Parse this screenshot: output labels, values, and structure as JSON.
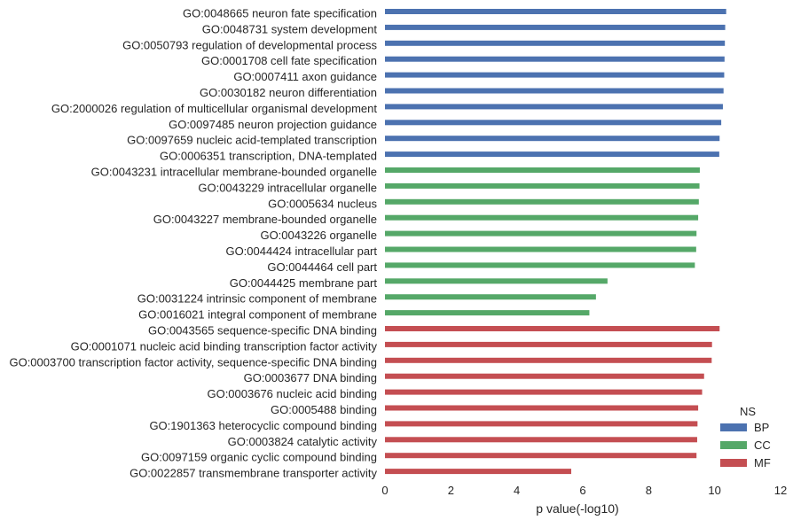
{
  "chart_data": {
    "type": "bar",
    "orientation": "horizontal",
    "xlabel": "p value(-log10)",
    "xlim": [
      0,
      12
    ],
    "xticks": [
      0,
      2,
      4,
      6,
      8,
      10,
      12
    ],
    "grid": false,
    "legend": {
      "title": "NS",
      "placement": "bottom-right"
    },
    "series": [
      {
        "name": "BP",
        "color": "#4c72b0"
      },
      {
        "name": "CC",
        "color": "#55a868"
      },
      {
        "name": "MF",
        "color": "#c44e52"
      }
    ],
    "categories": [
      "GO:0048665 neuron fate specification",
      "GO:0048731 system development",
      "GO:0050793 regulation of developmental process",
      "GO:0001708 cell fate specification",
      "GO:0007411 axon guidance",
      "GO:0030182 neuron differentiation",
      "GO:2000026 regulation of multicellular organismal development",
      "GO:0097485 neuron projection guidance",
      "GO:0097659 nucleic acid-templated transcription",
      "GO:0006351 transcription, DNA-templated",
      "GO:0043231 intracellular membrane-bounded organelle",
      "GO:0043229 intracellular organelle",
      "GO:0005634 nucleus",
      "GO:0043227 membrane-bounded organelle",
      "GO:0043226 organelle",
      "GO:0044424 intracellular part",
      "GO:0044464 cell part",
      "GO:0044425 membrane part",
      "GO:0031224 intrinsic component of membrane",
      "GO:0016021 integral component of membrane",
      "GO:0043565 sequence-specific DNA binding",
      "GO:0001071 nucleic acid binding transcription factor activity",
      "GO:0003700 transcription factor activity, sequence-specific DNA binding",
      "GO:0003677 DNA binding",
      "GO:0003676 nucleic acid binding",
      "GO:0005488 binding",
      "GO:1901363 heterocyclic compound binding",
      "GO:0003824 catalytic activity",
      "GO:0097159 organic cyclic compound binding",
      "GO:0022857 transmembrane transporter activity"
    ],
    "ns": [
      "BP",
      "BP",
      "BP",
      "BP",
      "BP",
      "BP",
      "BP",
      "BP",
      "BP",
      "BP",
      "CC",
      "CC",
      "CC",
      "CC",
      "CC",
      "CC",
      "CC",
      "CC",
      "CC",
      "CC",
      "MF",
      "MF",
      "MF",
      "MF",
      "MF",
      "MF",
      "MF",
      "MF",
      "MF",
      "MF"
    ],
    "values": [
      10.35,
      10.32,
      10.31,
      10.3,
      10.29,
      10.27,
      10.25,
      10.2,
      10.15,
      10.14,
      9.55,
      9.54,
      9.52,
      9.5,
      9.45,
      9.44,
      9.4,
      6.75,
      6.4,
      6.2,
      10.15,
      9.92,
      9.91,
      9.68,
      9.62,
      9.5,
      9.48,
      9.47,
      9.45,
      5.65
    ]
  }
}
